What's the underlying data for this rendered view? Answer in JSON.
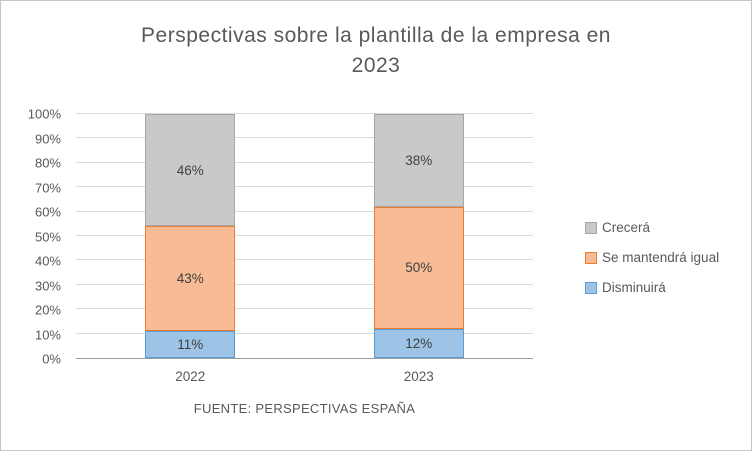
{
  "chart_data": {
    "type": "bar",
    "stacked": true,
    "title": "Perspectivas sobre la plantilla de la empresa en 2023",
    "title_lines": [
      "Perspectivas sobre la plantilla de la empresa en",
      "2023"
    ],
    "categories": [
      "2022",
      "2023"
    ],
    "series": [
      {
        "name": "Disminuirá",
        "values": [
          11,
          12
        ],
        "fill": "#9dc3e6",
        "border": "#5b9bd5"
      },
      {
        "name": "Se mantendrá igual",
        "values": [
          43,
          50
        ],
        "fill": "#f7bc95",
        "border": "#ed7d31"
      },
      {
        "name": "Crecerá",
        "values": [
          46,
          38
        ],
        "fill": "#c9c9c9",
        "border": "#a6a6a6"
      }
    ],
    "ylim": [
      0,
      100
    ],
    "ytick_step": 10,
    "ytick_suffix": "%",
    "data_label_suffix": "%",
    "grid": true,
    "legend_position": "right",
    "legend_order": [
      "Crecerá",
      "Se mantendrá igual",
      "Disminuirá"
    ]
  },
  "footer": {
    "source": "FUENTE: PERSPECTIVAS ESPAÑA"
  }
}
